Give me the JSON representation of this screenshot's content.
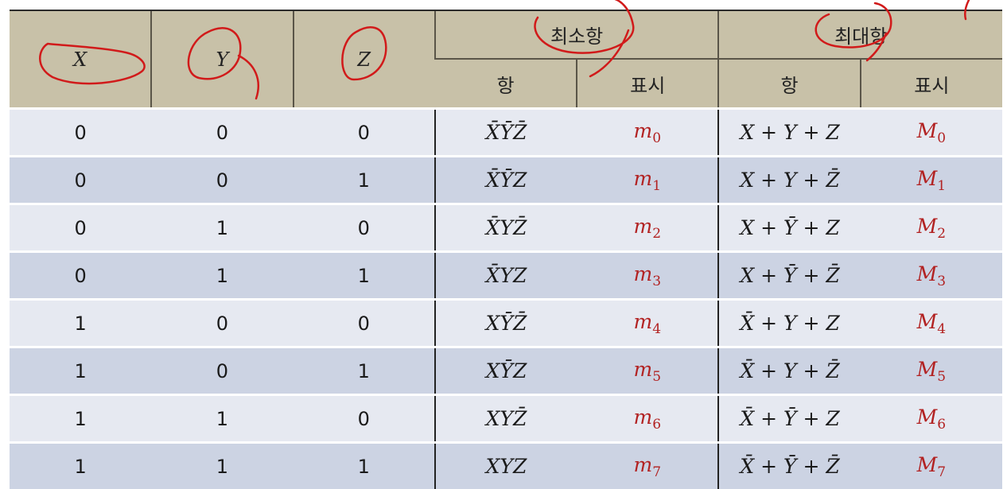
{
  "headers": {
    "x": "X",
    "y": "Y",
    "z": "Z",
    "minterm_group": "최소항",
    "maxterm_group": "최대항",
    "term": "항",
    "notation": "표시"
  },
  "rows": [
    {
      "x": "0",
      "y": "0",
      "z": "0",
      "minterm": "X̄ȲZ̄",
      "min_label": "m",
      "min_idx": "0",
      "maxterm": "X + Y + Z",
      "max_label": "M",
      "max_idx": "0"
    },
    {
      "x": "0",
      "y": "0",
      "z": "1",
      "minterm": "X̄ȲZ",
      "min_label": "m",
      "min_idx": "1",
      "maxterm": "X + Y + Z̄",
      "max_label": "M",
      "max_idx": "1"
    },
    {
      "x": "0",
      "y": "1",
      "z": "0",
      "minterm": "X̄YZ̄",
      "min_label": "m",
      "min_idx": "2",
      "maxterm": "X + Ȳ + Z",
      "max_label": "M",
      "max_idx": "2"
    },
    {
      "x": "0",
      "y": "1",
      "z": "1",
      "minterm": "X̄YZ",
      "min_label": "m",
      "min_idx": "3",
      "maxterm": "X + Ȳ + Z̄",
      "max_label": "M",
      "max_idx": "3"
    },
    {
      "x": "1",
      "y": "0",
      "z": "0",
      "minterm": "XȲZ̄",
      "min_label": "m",
      "min_idx": "4",
      "maxterm": "X̄ + Y + Z",
      "max_label": "M",
      "max_idx": "4"
    },
    {
      "x": "1",
      "y": "0",
      "z": "1",
      "minterm": "XȲZ",
      "min_label": "m",
      "min_idx": "5",
      "maxterm": "X̄ + Y + Z̄",
      "max_label": "M",
      "max_idx": "5"
    },
    {
      "x": "1",
      "y": "1",
      "z": "0",
      "minterm": "XYZ̄",
      "min_label": "m",
      "min_idx": "6",
      "maxterm": "X̄ + Ȳ + Z",
      "max_label": "M",
      "max_idx": "6"
    },
    {
      "x": "1",
      "y": "1",
      "z": "1",
      "minterm": "XYZ",
      "min_label": "m",
      "min_idx": "7",
      "maxterm": "X̄ + Ȳ + Z̄",
      "max_label": "M",
      "max_idx": "7"
    }
  ],
  "colors": {
    "header_bg": "#c8c1a8",
    "row_light": "#e6e9f1",
    "row_dark": "#ccd3e3",
    "label_red": "#b22222",
    "annotation_ink": "#d11a1a"
  }
}
